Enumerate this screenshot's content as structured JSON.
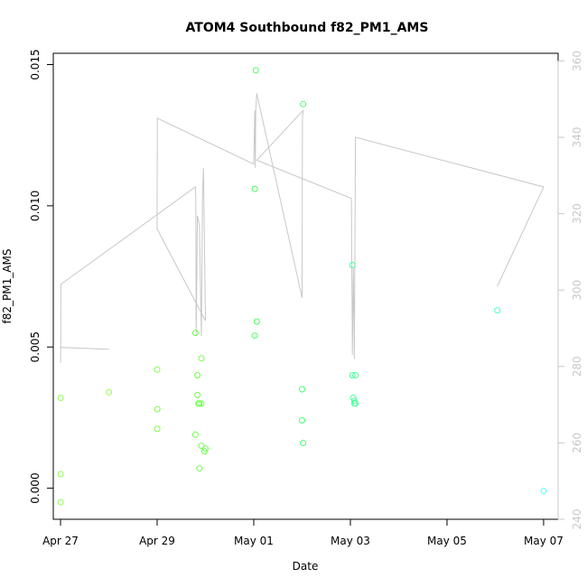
{
  "chart_data": {
    "type": "scatter",
    "title": "ATOM4 Southbound f82_PM1_AMS",
    "xlabel": "Date",
    "ylabel": "f82_PM1_AMS",
    "xlim": [
      "2016-04-26 20:24",
      "2016-05-07 07:12"
    ],
    "ylim": [
      -0.0011,
      0.0154
    ],
    "y2lim": [
      240,
      362
    ],
    "x_ticks": [
      {
        "date": "2016-04-27 00:00",
        "label": "Apr 27"
      },
      {
        "date": "2016-04-29 00:00",
        "label": "Apr 29"
      },
      {
        "date": "2016-05-01 00:00",
        "label": "May 01"
      },
      {
        "date": "2016-05-03 00:00",
        "label": "May 03"
      },
      {
        "date": "2016-05-05 00:00",
        "label": "May 05"
      },
      {
        "date": "2016-05-07 00:00",
        "label": "May 07"
      }
    ],
    "y_ticks": [
      {
        "value": 0.0,
        "label": "0.000"
      },
      {
        "value": 0.005,
        "label": "0.005"
      },
      {
        "value": 0.01,
        "label": "0.010"
      },
      {
        "value": 0.015,
        "label": "0.015"
      }
    ],
    "y2_ticks": [
      {
        "value": 240,
        "label": "240"
      },
      {
        "value": 260,
        "label": "260"
      },
      {
        "value": 280,
        "label": "280"
      },
      {
        "value": 300,
        "label": "300"
      },
      {
        "value": 320,
        "label": "320"
      },
      {
        "value": 340,
        "label": "340"
      },
      {
        "value": 360,
        "label": "360"
      }
    ],
    "grid": false,
    "series": [
      {
        "type": "scatter",
        "axis": "left",
        "values": [
          {
            "x": "2016-04-27 00:01",
            "y": 0.0032,
            "color": "#8dff4a"
          },
          {
            "x": "2016-04-27 00:01",
            "y": 0.0005,
            "color": "#8dff4a"
          },
          {
            "x": "2016-04-27 00:01",
            "y": -0.0005,
            "color": "#8dff4a"
          },
          {
            "x": "2016-04-28 00:01",
            "y": 0.0034,
            "color": "#8dff4a"
          },
          {
            "x": "2016-04-29 00:01",
            "y": 0.0042,
            "color": "#7dff4a"
          },
          {
            "x": "2016-04-29 00:05",
            "y": 0.0028,
            "color": "#7dff4a"
          },
          {
            "x": "2016-04-29 00:02",
            "y": 0.0021,
            "color": "#7dff4a"
          },
          {
            "x": "2016-04-29 19:00",
            "y": 0.0055,
            "color": "#6eff4a"
          },
          {
            "x": "2016-04-29 20:00",
            "y": 0.004,
            "color": "#6eff4a"
          },
          {
            "x": "2016-04-29 20:00",
            "y": 0.0033,
            "color": "#6eff4a"
          },
          {
            "x": "2016-04-29 20:30",
            "y": 0.003,
            "color": "#6eff4a"
          },
          {
            "x": "2016-04-29 21:00",
            "y": 0.003,
            "color": "#6eff4a"
          },
          {
            "x": "2016-04-29 22:00",
            "y": 0.003,
            "color": "#6eff4a"
          },
          {
            "x": "2016-04-29 22:00",
            "y": 0.0046,
            "color": "#6eff4a"
          },
          {
            "x": "2016-04-29 19:00",
            "y": 0.0019,
            "color": "#6eff4a"
          },
          {
            "x": "2016-04-29 22:00",
            "y": 0.0015,
            "color": "#6eff4a"
          },
          {
            "x": "2016-04-30 00:00",
            "y": 0.0014,
            "color": "#6eff4a"
          },
          {
            "x": "2016-04-29 23:30",
            "y": 0.0013,
            "color": "#6eff4a"
          },
          {
            "x": "2016-04-29 21:00",
            "y": 0.0007,
            "color": "#6eff4a"
          },
          {
            "x": "2016-05-01 01:00",
            "y": 0.0148,
            "color": "#4aff5a"
          },
          {
            "x": "2016-05-01 00:30",
            "y": 0.0106,
            "color": "#4aff5a"
          },
          {
            "x": "2016-05-01 01:30",
            "y": 0.0059,
            "color": "#4aff5a"
          },
          {
            "x": "2016-05-01 00:30",
            "y": 0.0054,
            "color": "#4aff5a"
          },
          {
            "x": "2016-05-02 00:30",
            "y": 0.0136,
            "color": "#4aff75"
          },
          {
            "x": "2016-05-02 00:00",
            "y": 0.0035,
            "color": "#4aff75"
          },
          {
            "x": "2016-05-02 00:00",
            "y": 0.0024,
            "color": "#4aff75"
          },
          {
            "x": "2016-05-02 00:30",
            "y": 0.0016,
            "color": "#4aff75"
          },
          {
            "x": "2016-05-03 01:00",
            "y": 0.0079,
            "color": "#4aff9a"
          },
          {
            "x": "2016-05-03 01:00",
            "y": 0.004,
            "color": "#4aff9a"
          },
          {
            "x": "2016-05-03 02:30",
            "y": 0.004,
            "color": "#4aff9a"
          },
          {
            "x": "2016-05-03 01:30",
            "y": 0.0032,
            "color": "#4aff9a"
          },
          {
            "x": "2016-05-03 02:00",
            "y": 0.0031,
            "color": "#4aff9a"
          },
          {
            "x": "2016-05-03 02:30",
            "y": 0.003,
            "color": "#4aff9a"
          },
          {
            "x": "2016-05-03 02:00",
            "y": 0.003,
            "color": "#4aff9a"
          },
          {
            "x": "2016-05-06 01:00",
            "y": 0.0063,
            "color": "#4affd6"
          },
          {
            "x": "2016-05-07 00:00",
            "y": -0.0001,
            "color": "#4affff"
          }
        ]
      },
      {
        "type": "line",
        "axis": "right",
        "color": "#c8c8c8",
        "values": [
          {
            "x": "2016-04-27 00:02",
            "y": 281
          },
          {
            "x": "2016-04-27 00:05",
            "y": 285
          },
          {
            "x": "2016-04-28 00:00",
            "y": 284.5
          },
          {
            "x": "2016-04-27 00:08",
            "y": 285
          },
          {
            "x": "2016-04-27 00:10",
            "y": 301.5
          },
          {
            "x": "2016-04-29 19:00",
            "y": 327
          },
          {
            "x": "2016-04-29 19:12",
            "y": 324
          },
          {
            "x": "2016-04-29 19:24",
            "y": 288
          },
          {
            "x": "2016-04-29 20:00",
            "y": 319.5
          },
          {
            "x": "2016-04-29 21:00",
            "y": 317
          },
          {
            "x": "2016-04-29 22:00",
            "y": 288
          },
          {
            "x": "2016-04-29 22:30",
            "y": 324
          },
          {
            "x": "2016-04-29 23:00",
            "y": 332
          },
          {
            "x": "2016-04-30 00:00",
            "y": 292
          },
          {
            "x": "2016-04-29 00:00",
            "y": 316
          },
          {
            "x": "2016-04-29 00:05",
            "y": 345
          },
          {
            "x": "2016-05-01 00:00",
            "y": 333
          },
          {
            "x": "2016-05-01 00:30",
            "y": 347
          },
          {
            "x": "2016-05-01 00:45",
            "y": 332
          },
          {
            "x": "2016-05-01 01:00",
            "y": 347
          },
          {
            "x": "2016-05-01 01:30",
            "y": 351.5
          },
          {
            "x": "2016-05-02 00:00",
            "y": 298
          },
          {
            "x": "2016-05-02 00:10",
            "y": 345
          },
          {
            "x": "2016-05-02 00:30",
            "y": 347
          },
          {
            "x": "2016-05-01 01:30",
            "y": 334
          },
          {
            "x": "2016-05-03 00:30",
            "y": 324
          },
          {
            "x": "2016-05-03 01:00",
            "y": 283
          },
          {
            "x": "2016-05-03 01:30",
            "y": 306
          },
          {
            "x": "2016-05-03 02:00",
            "y": 282
          },
          {
            "x": "2016-05-03 02:30",
            "y": 340
          },
          {
            "x": "2016-05-07 00:00",
            "y": 327
          },
          {
            "x": "2016-05-06 01:00",
            "y": 301
          }
        ]
      }
    ]
  }
}
